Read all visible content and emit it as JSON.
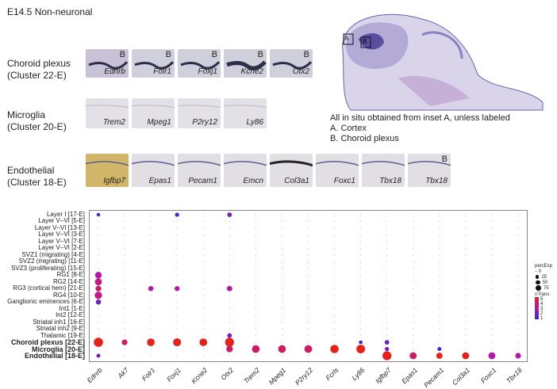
{
  "figure_title": "E14.5 Non-neuronal",
  "groups": [
    {
      "name": "Choroid plexus",
      "cluster": "(Cluster 22-E)"
    },
    {
      "name": "Microglia",
      "cluster": "(Cluster 20-E)"
    },
    {
      "name": "Endothelial",
      "cluster": "(Cluster 18-E)"
    }
  ],
  "choroid_panels": [
    "Ednrb",
    "Folr1",
    "Foxj1",
    "Kcne2",
    "Otx2"
  ],
  "microglia_panels": [
    "Trem2",
    "Mpeg1",
    "P2ry12",
    "Ly86"
  ],
  "endothelial_panels": [
    "Igfbp7",
    "Epas1",
    "Pecam1",
    "Emcn",
    "Col3a1",
    "Foxc1",
    "Tbx18",
    "Tbx18"
  ],
  "inset_marker": "B",
  "inset_labels": [
    "A",
    "B"
  ],
  "legend_lines": [
    "All in situ obtained from inset A, unless labeled",
    "A. Cortex",
    "B. Choroid plexus"
  ],
  "colors": {
    "low": "#2b2bd6",
    "mid": "#b517a8",
    "high": "#e8201a",
    "stain": "#3a3f8a"
  },
  "size_legend": {
    "title": "percExp",
    "values": [
      "0",
      "25",
      "50",
      "75"
    ]
  },
  "color_legend": {
    "title": "nTrans",
    "values": [
      "5",
      "4",
      "3",
      "2",
      "1"
    ]
  },
  "chart_data": {
    "type": "scatter",
    "subtype": "dot-plot",
    "x_categories": [
      "Ednrb",
      "Ak7",
      "Folr1",
      "Foxj1",
      "Kcne2",
      "Otx2",
      "Trem2",
      "Mpeg1",
      "P2ry12",
      "Fcrls",
      "Ly86",
      "Igfbp7",
      "Epas1",
      "Pecam1",
      "Col3a1",
      "Foxc1",
      "Tbx18"
    ],
    "y_categories": [
      "Layer I [17-E]",
      "Layer V–VI [5-E]",
      "Layer V–VI [13-E]",
      "Layer V–VI [3-E]",
      "Layer V–VI [7-E]",
      "Layer V–VI [2-E]",
      "SVZ1 (migrating) [4-E]",
      "SVZ2 (migrating) [11-E]",
      "SVZ3 (proliferating) [15-E]",
      "RG1 [8-E]",
      "RG2 [14-E]",
      "RG3 (cortical hem) [21-E]",
      "RG4 [10-E]",
      "Ganglionic eminences [6-E]",
      "Int1 [1-E]",
      "Int2 [12-E]",
      "Striatal inh1 [16-E]",
      "Striatal inh2 [9-E]",
      "Thalamic [19-E]",
      "Choroid plexus [22-E]",
      "Microglia [20-E]",
      "Endothelial [18-E]"
    ],
    "bold_rows": [
      "Choroid plexus [22-E]",
      "Microglia [20-E]",
      "Endothelial [18-E]"
    ],
    "size_label": "percExp",
    "color_label": "nTrans",
    "size_range": [
      0,
      75
    ],
    "color_range": [
      1,
      5
    ],
    "points": [
      {
        "x": "Ednrb",
        "y": "Layer I [17-E]",
        "size": 8,
        "color": 1.5
      },
      {
        "x": "Otx2",
        "y": "Layer I [17-E]",
        "size": 15,
        "color": 2
      },
      {
        "x": "Foxj1",
        "y": "Layer I [17-E]",
        "size": 12,
        "color": 1.5
      },
      {
        "x": "Ednrb",
        "y": "RG1 [8-E]",
        "size": 35,
        "color": 3
      },
      {
        "x": "Ednrb",
        "y": "RG2 [14-E]",
        "size": 40,
        "color": 3.5
      },
      {
        "x": "Ednrb",
        "y": "RG3 (cortical hem) [21-E]",
        "size": 25,
        "color": 4
      },
      {
        "x": "Ednrb",
        "y": "RG4 [10-E]",
        "size": 45,
        "color": 3.5
      },
      {
        "x": "Ednrb",
        "y": "Ganglionic eminences [6-E]",
        "size": 20,
        "color": 2
      },
      {
        "x": "Folr1",
        "y": "RG3 (cortical hem) [21-E]",
        "size": 20,
        "color": 3
      },
      {
        "x": "Foxj1",
        "y": "RG3 (cortical hem) [21-E]",
        "size": 18,
        "color": 3
      },
      {
        "x": "Otx2",
        "y": "RG3 (cortical hem) [21-E]",
        "size": 22,
        "color": 3
      },
      {
        "x": "Otx2",
        "y": "Thalamic [19-E]",
        "size": 15,
        "color": 2
      },
      {
        "x": "Ednrb",
        "y": "Choroid plexus [22-E]",
        "size": 75,
        "color": 5
      },
      {
        "x": "Ak7",
        "y": "Choroid plexus [22-E]",
        "size": 25,
        "color": 4
      },
      {
        "x": "Folr1",
        "y": "Choroid plexus [22-E]",
        "size": 50,
        "color": 5
      },
      {
        "x": "Foxj1",
        "y": "Choroid plexus [22-E]",
        "size": 55,
        "color": 5
      },
      {
        "x": "Kcne2",
        "y": "Choroid plexus [22-E]",
        "size": 50,
        "color": 5
      },
      {
        "x": "Otx2",
        "y": "Choroid plexus [22-E]",
        "size": 70,
        "color": 5
      },
      {
        "x": "Otx2",
        "y": "Microglia [20-E]",
        "size": 35,
        "color": 4
      },
      {
        "x": "Trem2",
        "y": "Microglia [20-E]",
        "size": 50,
        "color": 4
      },
      {
        "x": "Mpeg1",
        "y": "Microglia [20-E]",
        "size": 50,
        "color": 4
      },
      {
        "x": "P2ry12",
        "y": "Microglia [20-E]",
        "size": 50,
        "color": 4
      },
      {
        "x": "Fcrls",
        "y": "Microglia [20-E]",
        "size": 60,
        "color": 5
      },
      {
        "x": "Ly86",
        "y": "Microglia [20-E]",
        "size": 65,
        "color": 5
      },
      {
        "x": "Igfbp7",
        "y": "Endothelial [18-E]",
        "size": 70,
        "color": 5
      },
      {
        "x": "Epas1",
        "y": "Endothelial [18-E]",
        "size": 40,
        "color": 4
      },
      {
        "x": "Pecam1",
        "y": "Endothelial [18-E]",
        "size": 30,
        "color": 5
      },
      {
        "x": "Pecam1",
        "y": "Microglia [20-E]",
        "size": 10,
        "color": 1
      },
      {
        "x": "Col3a1",
        "y": "Endothelial [18-E]",
        "size": 40,
        "color": 5
      },
      {
        "x": "Foxc1",
        "y": "Endothelial [18-E]",
        "size": 40,
        "color": 3
      },
      {
        "x": "Tbx18",
        "y": "Endothelial [18-E]",
        "size": 25,
        "color": 3
      },
      {
        "x": "Igfbp7",
        "y": "Choroid plexus [22-E]",
        "size": 15,
        "color": 2
      },
      {
        "x": "Igfbp7",
        "y": "Microglia [20-E]",
        "size": 12,
        "color": 2
      },
      {
        "x": "Ly86",
        "y": "Choroid plexus [22-E]",
        "size": 8,
        "color": 1
      },
      {
        "x": "Ednrb",
        "y": "Endothelial [18-E]",
        "size": 10,
        "color": 2
      }
    ]
  }
}
